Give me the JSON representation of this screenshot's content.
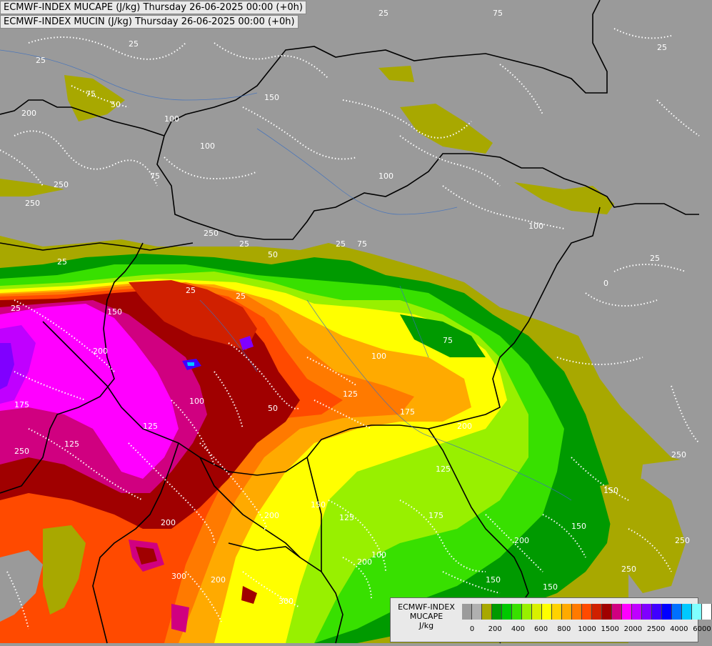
{
  "header": {
    "title_line1": "ECMWF-INDEX MUCAPE (J/kg) Thursday 26-06-2025 00:00 (+0h)",
    "title_line2": "ECMWF-INDEX MUCIN (J/kg) Thursday 26-06-2025 00:00 (+0h)"
  },
  "legend": {
    "line1": "ECMWF-INDEX",
    "line2": "MUCAPE",
    "line3": "J/kg",
    "colors": [
      "#9b9b9b",
      "#b0b0b0",
      "#a8a800",
      "#009a00",
      "#00c800",
      "#38e000",
      "#98f000",
      "#d8f000",
      "#ffff00",
      "#ffd200",
      "#ffaa00",
      "#ff7a00",
      "#ff4a00",
      "#d02000",
      "#a00000",
      "#d00080",
      "#ff00ff",
      "#c000ff",
      "#8000ff",
      "#4000ff",
      "#0000ff",
      "#0070ff",
      "#00c8ff",
      "#80ffff",
      "#ffffff"
    ],
    "ticks": [
      "0",
      "200",
      "400",
      "600",
      "800",
      "1000",
      "1500",
      "2000",
      "2500",
      "4000",
      "6000"
    ]
  },
  "contour_labels": [
    "25",
    "75",
    "25",
    "25",
    "75",
    "50",
    "100",
    "200",
    "250",
    "100",
    "75",
    "250",
    "100",
    "150",
    "25",
    "25",
    "75",
    "25",
    "100",
    "250",
    "25",
    "25",
    "0",
    "150",
    "25",
    "200",
    "25",
    "100",
    "125",
    "175",
    "75",
    "100",
    "125",
    "175",
    "200",
    "25",
    "50",
    "250",
    "125",
    "125",
    "200",
    "150",
    "150",
    "150",
    "150",
    "250",
    "200",
    "250",
    "200",
    "300",
    "200",
    "250",
    "175",
    "100",
    "150",
    "200",
    "300",
    "50",
    "125"
  ]
}
